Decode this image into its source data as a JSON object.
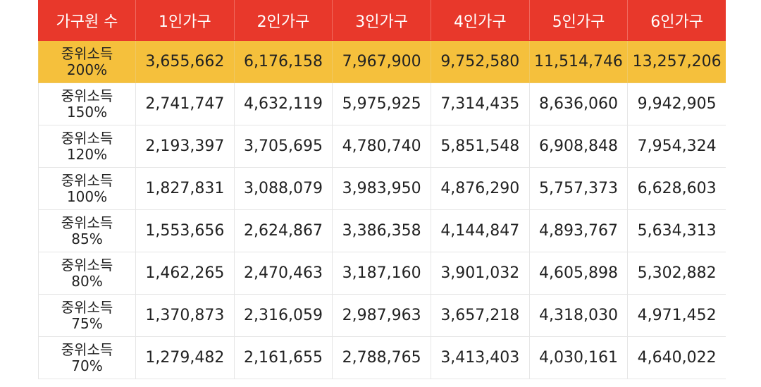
{
  "table": {
    "headers": [
      "가구원 수",
      "1인가구",
      "2인가구",
      "3인가구",
      "4인가구",
      "5인가구",
      "6인가구"
    ],
    "rows": [
      {
        "label_line1": "중위소득",
        "label_line2": "200%",
        "values": [
          "3,655,662",
          "6,176,158",
          "7,967,900",
          "9,752,580",
          "11,514,746",
          "13,257,206"
        ],
        "highlight": true
      },
      {
        "label_line1": "중위소득",
        "label_line2": "150%",
        "values": [
          "2,741,747",
          "4,632,119",
          "5,975,925",
          "7,314,435",
          "8,636,060",
          "9,942,905"
        ]
      },
      {
        "label_line1": "중위소득",
        "label_line2": "120%",
        "values": [
          "2,193,397",
          "3,705,695",
          "4,780,740",
          "5,851,548",
          "6,908,848",
          "7,954,324"
        ]
      },
      {
        "label_line1": "중위소득",
        "label_line2": "100%",
        "values": [
          "1,827,831",
          "3,088,079",
          "3,983,950",
          "4,876,290",
          "5,757,373",
          "6,628,603"
        ]
      },
      {
        "label_line1": "중위소득",
        "label_line2": "85%",
        "values": [
          "1,553,656",
          "2,624,867",
          "3,386,358",
          "4,144,847",
          "4,893,767",
          "5,634,313"
        ]
      },
      {
        "label_line1": "중위소득",
        "label_line2": "80%",
        "values": [
          "1,462,265",
          "2,470,463",
          "3,187,160",
          "3,901,032",
          "4,605,898",
          "5,302,882"
        ]
      },
      {
        "label_line1": "중위소득",
        "label_line2": "75%",
        "values": [
          "1,370,873",
          "2,316,059",
          "2,987,963",
          "3,657,218",
          "4,318,030",
          "4,971,452"
        ]
      },
      {
        "label_line1": "중위소득",
        "label_line2": "70%",
        "values": [
          "1,279,482",
          "2,161,655",
          "2,788,765",
          "3,413,403",
          "4,030,161",
          "4,640,022"
        ]
      }
    ]
  },
  "colors": {
    "header_bg": "#e8382b",
    "highlight_bg": "#f5c03c"
  }
}
